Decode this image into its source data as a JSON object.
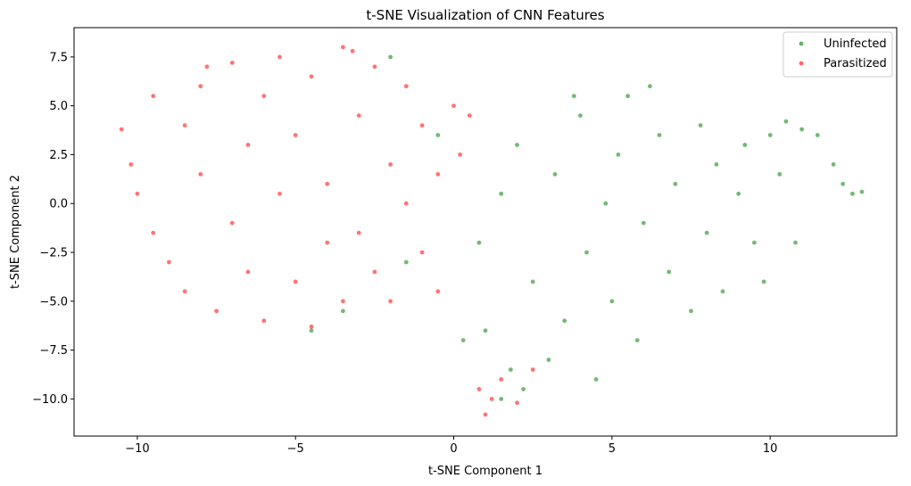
{
  "chart_data": {
    "type": "scatter",
    "title": "t-SNE Visualization of CNN Features",
    "xlabel": "t-SNE Component 1",
    "ylabel": "t-SNE Component 2",
    "xlim": [
      -12.0,
      14.0
    ],
    "ylim": [
      -11.9,
      9.0
    ],
    "xticks": [
      -10,
      -5,
      0,
      5,
      10
    ],
    "xtick_labels": [
      "−10",
      "−5",
      "0",
      "5",
      "10"
    ],
    "yticks": [
      -10.0,
      -7.5,
      -5.0,
      -2.5,
      0.0,
      2.5,
      5.0,
      7.5
    ],
    "ytick_labels": [
      "−10.0",
      "−7.5",
      "−5.0",
      "−2.5",
      "0.0",
      "2.5",
      "5.0",
      "7.5"
    ],
    "grid": false,
    "legend_position": "top-right",
    "series": [
      {
        "name": "Uninfected",
        "color": "#008000",
        "alpha": 0.55,
        "points": [
          [
            0.8,
            -2.0
          ],
          [
            1.5,
            0.5
          ],
          [
            2.0,
            3.0
          ],
          [
            2.5,
            -4.0
          ],
          [
            3.0,
            -8.0
          ],
          [
            3.2,
            1.5
          ],
          [
            3.5,
            -6.0
          ],
          [
            4.0,
            4.5
          ],
          [
            4.2,
            -2.5
          ],
          [
            4.8,
            0.0
          ],
          [
            5.0,
            -5.0
          ],
          [
            5.2,
            2.5
          ],
          [
            5.5,
            5.5
          ],
          [
            5.8,
            -7.0
          ],
          [
            6.0,
            -1.0
          ],
          [
            6.5,
            3.5
          ],
          [
            6.8,
            -3.5
          ],
          [
            7.0,
            1.0
          ],
          [
            7.5,
            -5.5
          ],
          [
            7.8,
            4.0
          ],
          [
            8.0,
            -1.5
          ],
          [
            8.3,
            2.0
          ],
          [
            8.5,
            -4.5
          ],
          [
            9.0,
            0.5
          ],
          [
            9.2,
            3.0
          ],
          [
            9.5,
            -2.0
          ],
          [
            10.0,
            3.5
          ],
          [
            10.3,
            1.5
          ],
          [
            10.5,
            4.2
          ],
          [
            11.0,
            3.8
          ],
          [
            11.5,
            3.5
          ],
          [
            12.0,
            2.0
          ],
          [
            12.3,
            1.0
          ],
          [
            12.6,
            0.5
          ],
          [
            12.9,
            0.6
          ],
          [
            1.0,
            -6.5
          ],
          [
            1.8,
            -8.5
          ],
          [
            2.2,
            -9.5
          ],
          [
            1.5,
            -10.0
          ],
          [
            -0.5,
            3.5
          ],
          [
            -2.0,
            7.5
          ],
          [
            -3.5,
            -5.5
          ],
          [
            -4.5,
            -6.5
          ],
          [
            -1.5,
            -3.0
          ],
          [
            0.3,
            -7.0
          ],
          [
            10.8,
            -2.0
          ],
          [
            9.8,
            -4.0
          ],
          [
            4.5,
            -9.0
          ],
          [
            6.2,
            6.0
          ],
          [
            3.8,
            5.5
          ]
        ]
      },
      {
        "name": "Parasitized",
        "color": "#ff0000",
        "alpha": 0.55,
        "points": [
          [
            -10.5,
            3.8
          ],
          [
            -10.2,
            2.0
          ],
          [
            -10.0,
            0.5
          ],
          [
            -9.5,
            5.5
          ],
          [
            -9.5,
            -1.5
          ],
          [
            -9.0,
            -3.0
          ],
          [
            -8.5,
            4.0
          ],
          [
            -8.5,
            -4.5
          ],
          [
            -8.0,
            6.0
          ],
          [
            -8.0,
            1.5
          ],
          [
            -7.5,
            -5.5
          ],
          [
            -7.0,
            7.2
          ],
          [
            -7.0,
            -1.0
          ],
          [
            -6.5,
            3.0
          ],
          [
            -6.5,
            -3.5
          ],
          [
            -6.0,
            5.5
          ],
          [
            -6.0,
            -6.0
          ],
          [
            -5.5,
            0.5
          ],
          [
            -5.5,
            7.5
          ],
          [
            -5.0,
            -4.0
          ],
          [
            -5.0,
            3.5
          ],
          [
            -4.5,
            -6.3
          ],
          [
            -4.5,
            6.5
          ],
          [
            -4.0,
            1.0
          ],
          [
            -4.0,
            -2.0
          ],
          [
            -3.5,
            8.0
          ],
          [
            -3.5,
            -5.0
          ],
          [
            -3.0,
            4.5
          ],
          [
            -3.0,
            -1.5
          ],
          [
            -2.5,
            7.0
          ],
          [
            -2.5,
            -3.5
          ],
          [
            -2.0,
            2.0
          ],
          [
            -2.0,
            -5.0
          ],
          [
            -1.5,
            6.0
          ],
          [
            -1.5,
            0.0
          ],
          [
            -1.0,
            -2.5
          ],
          [
            -1.0,
            4.0
          ],
          [
            -0.5,
            1.5
          ],
          [
            -0.5,
            -4.5
          ],
          [
            0.0,
            5.0
          ],
          [
            0.2,
            2.5
          ],
          [
            0.5,
            4.5
          ],
          [
            1.0,
            -10.8
          ],
          [
            1.2,
            -10.0
          ],
          [
            1.5,
            -9.0
          ],
          [
            2.0,
            -10.2
          ],
          [
            2.5,
            -8.5
          ],
          [
            0.8,
            -9.5
          ],
          [
            -7.8,
            7.0
          ],
          [
            -3.2,
            7.8
          ]
        ]
      }
    ]
  }
}
